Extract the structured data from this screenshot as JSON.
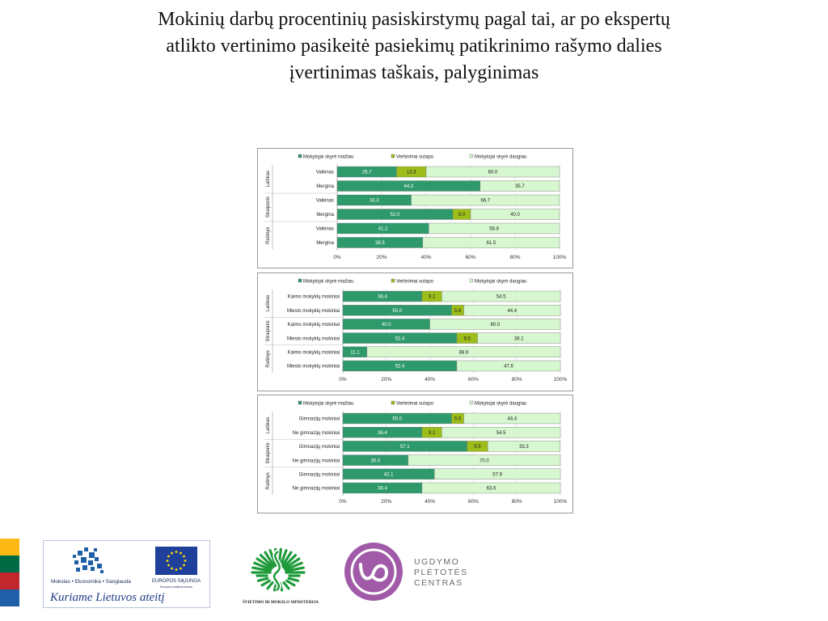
{
  "title": {
    "line1": "Mokinių darbų procentinių pasiskirstymų pagal tai, ar po ekspertų",
    "line2": "atlikto vertinimo pasikeitė pasiekimų patikrinimo rašymo dalies",
    "line3": "įvertinimas taškais, palyginimas"
  },
  "colors": {
    "less": "#2e9a6b",
    "same": "#9dbd1a",
    "more": "#d6f7cf"
  },
  "chart_data": [
    {
      "type": "bar",
      "stacked": true,
      "orientation": "horizontal",
      "legend": [
        "Mokytojai skyrė mažiau",
        "Vertinimai sutapo",
        "Mokytojai skyrė daugiau"
      ],
      "groups": [
        "Laiškas",
        "Straipsnis",
        "Rašinys"
      ],
      "categories": [
        "Vaikinas",
        "Mergina",
        "Vaikinas",
        "Mergina",
        "Vaikinas",
        "Mergina"
      ],
      "series": [
        {
          "name": "Mokytojai skyrė mažiau",
          "values": [
            26.7,
            64.3,
            33.3,
            52.0,
            41.2,
            38.5
          ]
        },
        {
          "name": "Vertinimai sutapo",
          "values": [
            13.3,
            0,
            0,
            8.0,
            0,
            0
          ]
        },
        {
          "name": "Mokytojai skyrė daugiau",
          "values": [
            60.0,
            35.7,
            66.7,
            40.0,
            58.8,
            61.5
          ]
        }
      ],
      "xticks": [
        "0%",
        "20%",
        "40%",
        "60%",
        "80%",
        "100%"
      ],
      "xlim": [
        0,
        100
      ]
    },
    {
      "type": "bar",
      "stacked": true,
      "orientation": "horizontal",
      "legend": [
        "Mokytojai skyrė mažiau",
        "Vertinimai sutapo",
        "Mokytojai skyrė daugiau"
      ],
      "groups": [
        "Laiškas",
        "Straipsnis",
        "Rašinys"
      ],
      "categories": [
        "Kaimo mokyklų mokiniai",
        "Miesto mokyklų mokiniai",
        "Kaimo mokyklų mokiniai",
        "Miesto mokyklų mokiniai",
        "Kaimo mokyklų mokiniai",
        "Miesto mokyklų mokiniai"
      ],
      "series": [
        {
          "name": "Mokytojai skyrė mažiau",
          "values": [
            36.4,
            50.0,
            40.0,
            52.4,
            11.1,
            52.4
          ]
        },
        {
          "name": "Vertinimai sutapo",
          "values": [
            9.1,
            5.6,
            0,
            9.5,
            0,
            0
          ]
        },
        {
          "name": "Mokytojai skyrė daugiau",
          "values": [
            54.5,
            44.4,
            60.0,
            38.1,
            88.9,
            47.6
          ]
        }
      ],
      "xticks": [
        "0%",
        "20%",
        "40%",
        "60%",
        "80%",
        "100%"
      ],
      "xlim": [
        0,
        100
      ]
    },
    {
      "type": "bar",
      "stacked": true,
      "orientation": "horizontal",
      "legend": [
        "Mokytojai skyrė mažiau",
        "Vertinimai sutapo",
        "Mokytojai skyrė daugiau"
      ],
      "groups": [
        "Laiškas",
        "Straipsnis",
        "Rašinys"
      ],
      "categories": [
        "Gimnazijų mokiniai",
        "Ne gimnazijų mokiniai",
        "Gimnazijų mokiniai",
        "Ne gimnazijų mokiniai",
        "Gimnazijų mokiniai",
        "Ne gimnazijų mokiniai"
      ],
      "series": [
        {
          "name": "Mokytojai skyrė mažiau",
          "values": [
            50.0,
            36.4,
            57.1,
            30.0,
            42.1,
            36.4
          ]
        },
        {
          "name": "Vertinimai sutapo",
          "values": [
            5.6,
            9.1,
            9.5,
            0,
            0,
            0
          ]
        },
        {
          "name": "Mokytojai skyrė daugiau",
          "values": [
            44.4,
            54.5,
            33.3,
            70.0,
            57.9,
            63.6
          ]
        }
      ],
      "xticks": [
        "0%",
        "20%",
        "40%",
        "60%",
        "80%",
        "100%"
      ],
      "xlim": [
        0,
        100
      ]
    }
  ],
  "flag_colors": [
    "#fdb913",
    "#006a44",
    "#c1272d",
    "#1f5fa8"
  ],
  "logos": {
    "esf": {
      "left_caption": "Mokslas • Ekonomika • Sanglauda",
      "right_caption": "EUROPOS SĄJUNGA",
      "right_subcaption": "Europos socialinis fondas",
      "slogan": "Kuriame Lietuvos ateitį"
    },
    "ministry": {
      "caption": "ŠVIETIMO IR MOKSLO MINISTERIJA"
    },
    "upc": {
      "line1": "UGDYMO",
      "line2": "PLĖTOTĖS",
      "line3": "CENTRAS"
    }
  }
}
